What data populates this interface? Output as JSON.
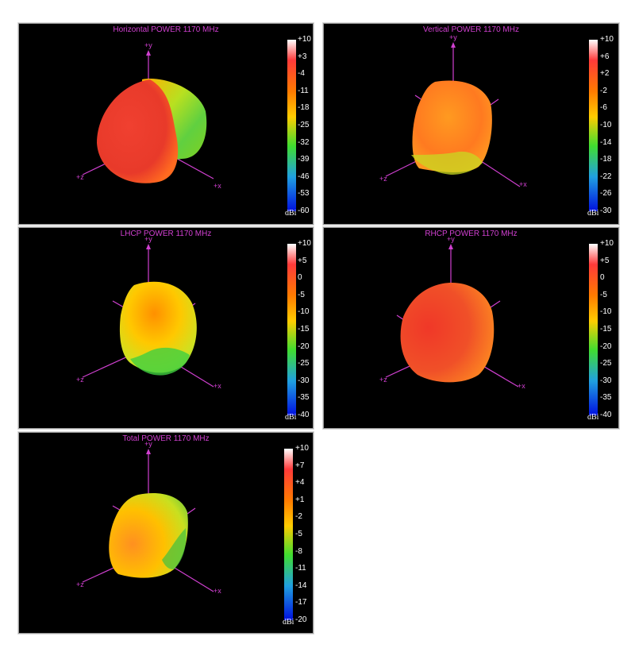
{
  "panels": [
    {
      "title": "Horizontal POWER 1170  MHz",
      "scale": [
        "+10",
        "+3",
        "-4",
        "-11",
        "-18",
        "-25",
        "-32",
        "-39",
        "-46",
        "-53",
        "-60"
      ],
      "unit": "dBi",
      "axes": {
        "y": "+y",
        "z": "+z",
        "x": "+x"
      }
    },
    {
      "title": "Vertical POWER 1170  MHz",
      "scale": [
        "+10",
        "+6",
        "+2",
        "-2",
        "-6",
        "-10",
        "-14",
        "-18",
        "-22",
        "-26",
        "-30"
      ],
      "unit": "dBi",
      "axes": {
        "y": "+y",
        "z": "+z",
        "x": "+x"
      }
    },
    {
      "title": "LHCP POWER 1170  MHz",
      "scale": [
        "+10",
        "+5",
        "0",
        "-5",
        "-10",
        "-15",
        "-20",
        "-25",
        "-30",
        "-35",
        "-40"
      ],
      "unit": "dBi",
      "axes": {
        "y": "+y",
        "z": "+z",
        "x": "+x"
      }
    },
    {
      "title": "RHCP POWER 1170  MHz",
      "scale": [
        "+10",
        "+5",
        "0",
        "-5",
        "-10",
        "-15",
        "-20",
        "-25",
        "-30",
        "-35",
        "-40"
      ],
      "unit": "dBi",
      "axes": {
        "y": "+y",
        "z": "+z",
        "x": "+x"
      }
    },
    {
      "title": "Total POWER 1170  MHz",
      "scale": [
        "+10",
        "+7",
        "+4",
        "+1",
        "-2",
        "-5",
        "-8",
        "-11",
        "-14",
        "-17",
        "-20"
      ],
      "unit": "dBi",
      "axes": {
        "y": "+y",
        "z": "+z",
        "x": "+x"
      }
    }
  ],
  "colors": {
    "axis": "#d040d0",
    "panel_bg": "#000000",
    "colormap": [
      "#ffffff",
      "#ff3030",
      "#ff8000",
      "#ffd000",
      "#30e030",
      "#2060ff",
      "#0000e0"
    ]
  }
}
